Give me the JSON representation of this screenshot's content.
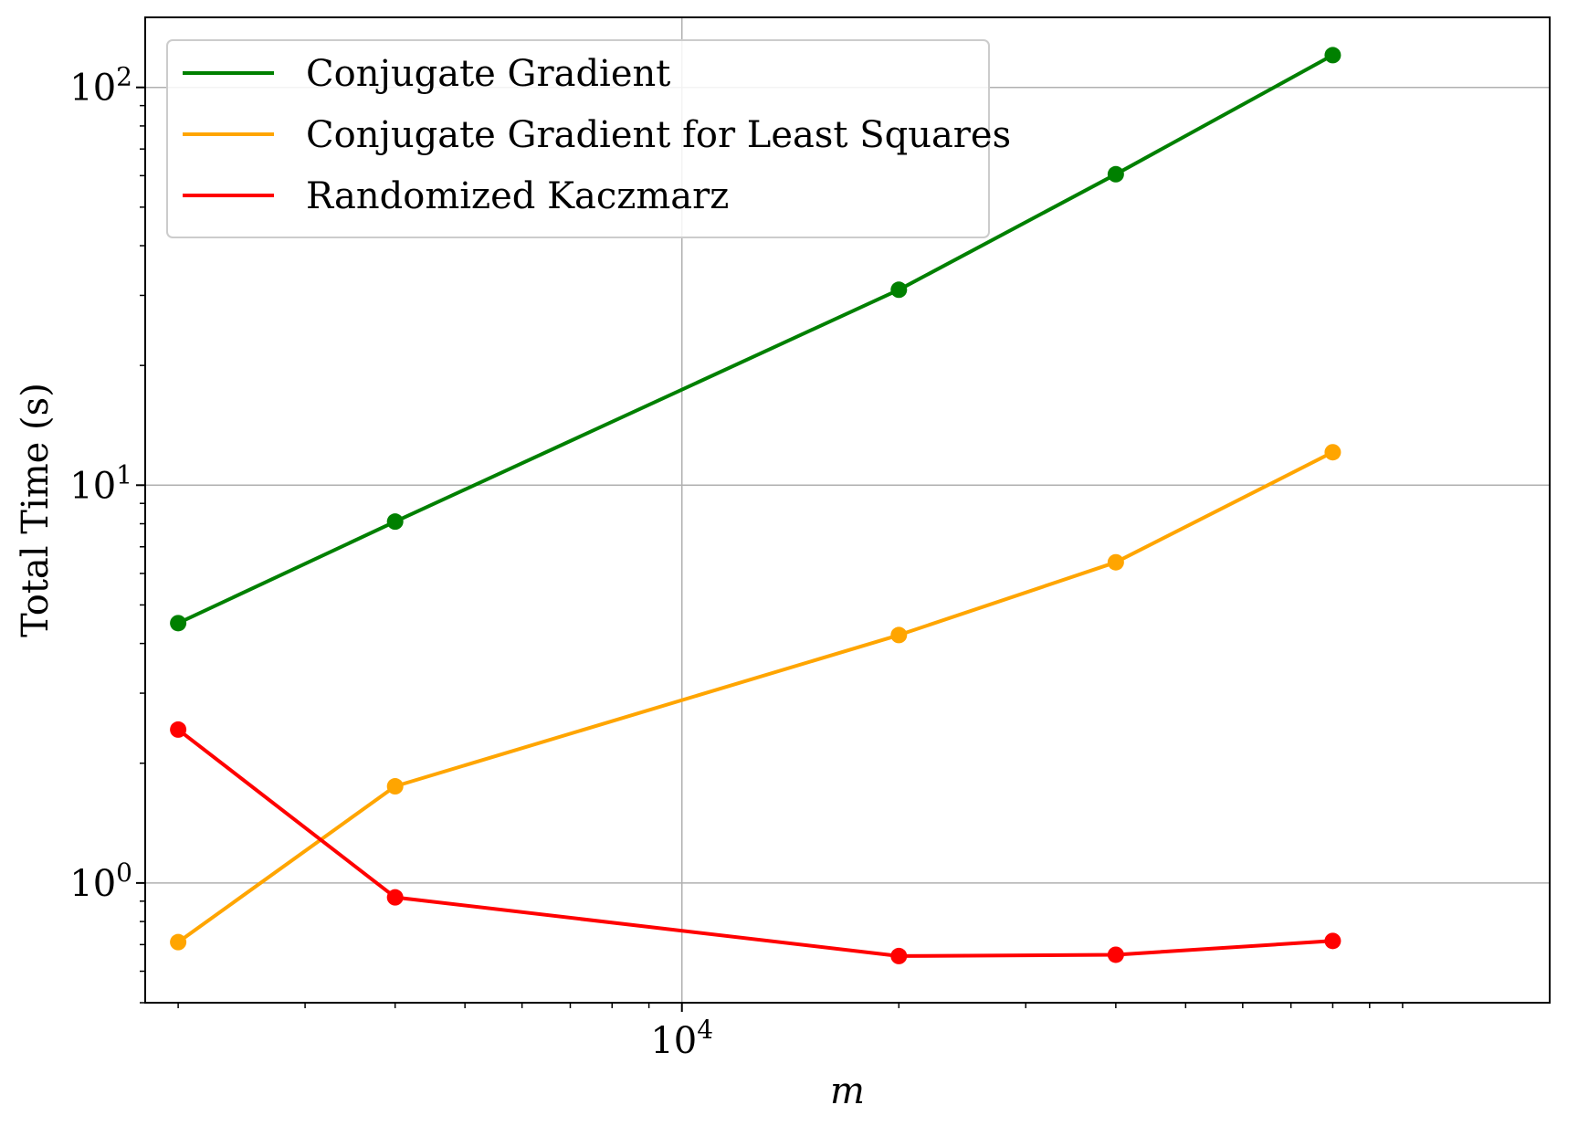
{
  "chart_data": {
    "type": "line",
    "title": "",
    "xlabel": "m",
    "ylabel": "Total Time (s)",
    "xscale": "log",
    "yscale": "log",
    "xlim": [
      1800,
      160000
    ],
    "ylim": [
      0.5,
      150
    ],
    "grid": true,
    "legend_position": "top-left",
    "x": [
      2000,
      4000,
      20000,
      40000,
      80000
    ],
    "x_ticks": [
      {
        "value": 10000,
        "base": "10",
        "exp": "4"
      }
    ],
    "y_ticks": [
      {
        "value": 1,
        "base": "10",
        "exp": "0"
      },
      {
        "value": 10,
        "base": "10",
        "exp": "1"
      },
      {
        "value": 100,
        "base": "10",
        "exp": "2"
      }
    ],
    "series": [
      {
        "name": "Conjugate Gradient",
        "color": "#008000",
        "values": [
          4.5,
          8.1,
          31.0,
          60.5,
          120.5
        ]
      },
      {
        "name": "Conjugate Gradient for Least Squares",
        "color": "#FFA500",
        "values": [
          0.71,
          1.75,
          4.2,
          6.4,
          12.1
        ]
      },
      {
        "name": "Randomized Kaczmarz",
        "color": "#FF0000",
        "values": [
          2.43,
          0.92,
          0.655,
          0.66,
          0.715
        ]
      }
    ]
  }
}
